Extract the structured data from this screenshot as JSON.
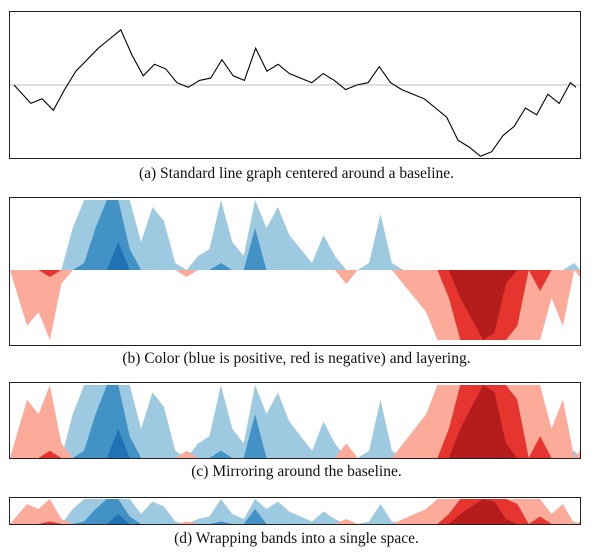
{
  "captions": {
    "a": "(a)  Standard line graph centered around a baseline.",
    "b": "(b)  Color (blue is positive, red is negative) and layering.",
    "c": "(c)  Mirroring around the baseline.",
    "d": "(d)  Wrapping bands into a single space."
  },
  "colors": {
    "line": "#000000",
    "baseline": "#cccccc",
    "pos_bands": [
      "#9ecae1",
      "#4292c6",
      "#2171b5"
    ],
    "neg_bands": [
      "#fcaa99",
      "#e6342f",
      "#b51d1d"
    ]
  },
  "chart_data": [
    {
      "type": "line",
      "panel": "a",
      "baseline": 0,
      "ylim": [
        -3,
        3
      ],
      "grid": false,
      "series": [
        {
          "x": [
            0,
            3,
            5,
            7,
            9,
            11,
            13,
            15,
            17,
            19,
            21,
            23,
            25,
            27,
            29,
            31,
            33,
            35,
            37,
            39,
            41,
            43,
            45,
            47,
            49,
            51,
            53,
            55,
            57,
            59,
            61,
            63,
            65,
            67,
            69,
            71,
            73,
            75,
            77,
            79,
            81,
            83,
            85,
            87,
            89,
            91,
            93,
            95,
            97,
            99,
            100
          ],
          "values": [
            0.0,
            -0.8,
            -0.6,
            -1.1,
            -0.2,
            0.6,
            1.1,
            1.6,
            2.0,
            2.4,
            1.3,
            0.4,
            0.9,
            0.7,
            0.1,
            -0.1,
            0.2,
            0.3,
            1.1,
            0.4,
            0.2,
            1.6,
            0.6,
            0.9,
            0.5,
            0.3,
            0.1,
            0.5,
            0.2,
            -0.2,
            0.0,
            0.1,
            0.8,
            0.1,
            -0.2,
            -0.4,
            -0.6,
            -1.0,
            -1.4,
            -2.4,
            -2.7,
            -3.1,
            -2.9,
            -2.2,
            -1.8,
            -1.0,
            -1.3,
            -0.4,
            -0.8,
            0.1,
            -0.1
          ]
        }
      ]
    },
    {
      "type": "area",
      "panel": "b",
      "encoding": "layered",
      "band_size": 1,
      "bands": 3
    },
    {
      "type": "area",
      "panel": "c",
      "encoding": "mirrored",
      "band_size": 1,
      "bands": 3
    },
    {
      "type": "area",
      "panel": "d",
      "encoding": "wrapped",
      "band_size": 1,
      "bands": 3
    }
  ]
}
